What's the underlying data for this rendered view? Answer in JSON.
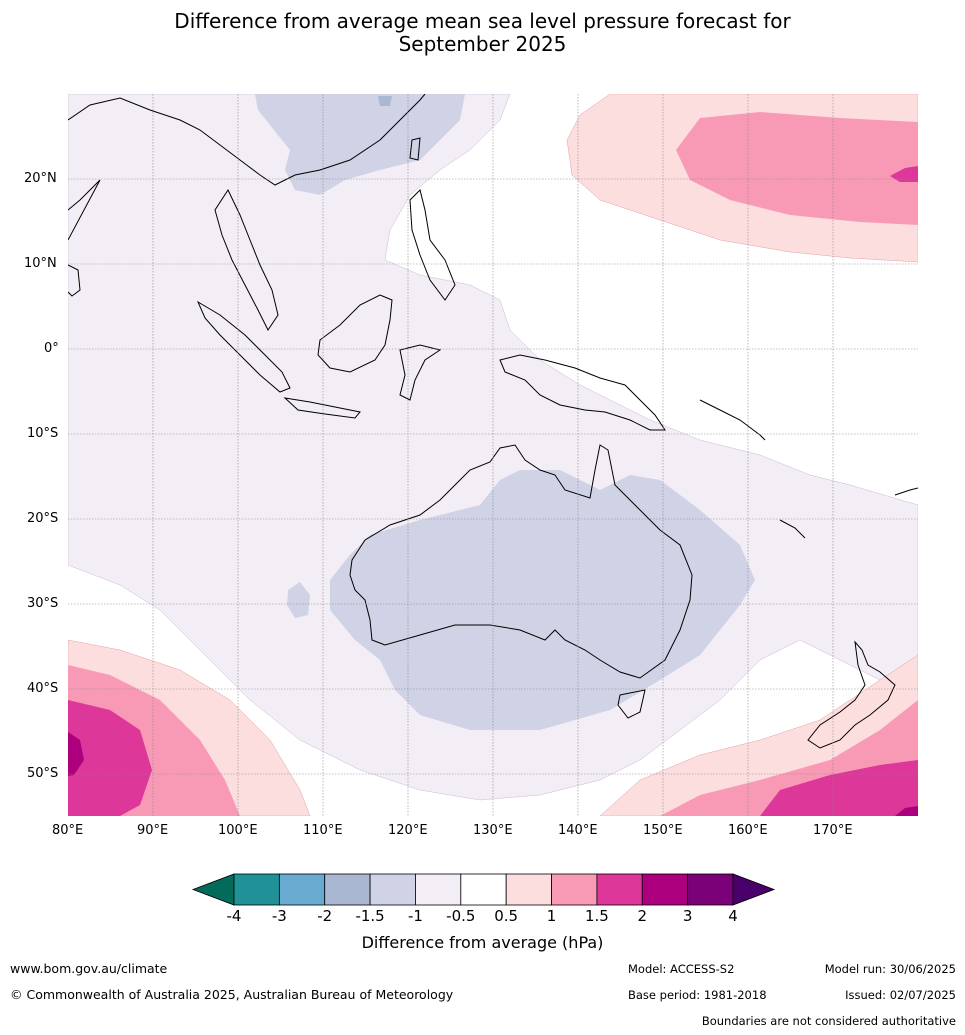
{
  "title": {
    "line1": "Difference from average mean sea level pressure forecast for",
    "line2": "September 2025"
  },
  "map": {
    "lon_labels": [
      "80°E",
      "90°E",
      "100°E",
      "110°E",
      "120°E",
      "130°E",
      "140°E",
      "150°E",
      "160°E",
      "170°E"
    ],
    "lat_labels": [
      "20°N",
      "10°N",
      "0°",
      "10°S",
      "20°S",
      "30°S",
      "40°S",
      "50°S"
    ]
  },
  "colorbar": {
    "tick_labels": [
      "-4",
      "-3",
      "-2",
      "-1.5",
      "-1",
      "-0.5",
      "0.5",
      "1",
      "1.5",
      "2",
      "3",
      "4"
    ],
    "colors": [
      "#046b5b",
      "#1f9197",
      "#69abd0",
      "#a9b7d2",
      "#d0d2e5",
      "#f3edf5",
      "#ffffff",
      "#fddede",
      "#f89ab6",
      "#dc3799",
      "#ac007e",
      "#7a0177",
      "#49006a"
    ],
    "title": "Difference from average (hPa)"
  },
  "footer": {
    "url": "www.bom.gov.au/climate",
    "copyright": "© Commonwealth of Australia 2025, Australian Bureau of Meteorology",
    "model": "Model: ACCESS-S2",
    "base_period": "Base period: 1981-2018",
    "model_run": "Model run: 30/06/2025",
    "issued": "Issued: 02/07/2025",
    "boundaries_note": "Boundaries are not considered authoritative"
  }
}
